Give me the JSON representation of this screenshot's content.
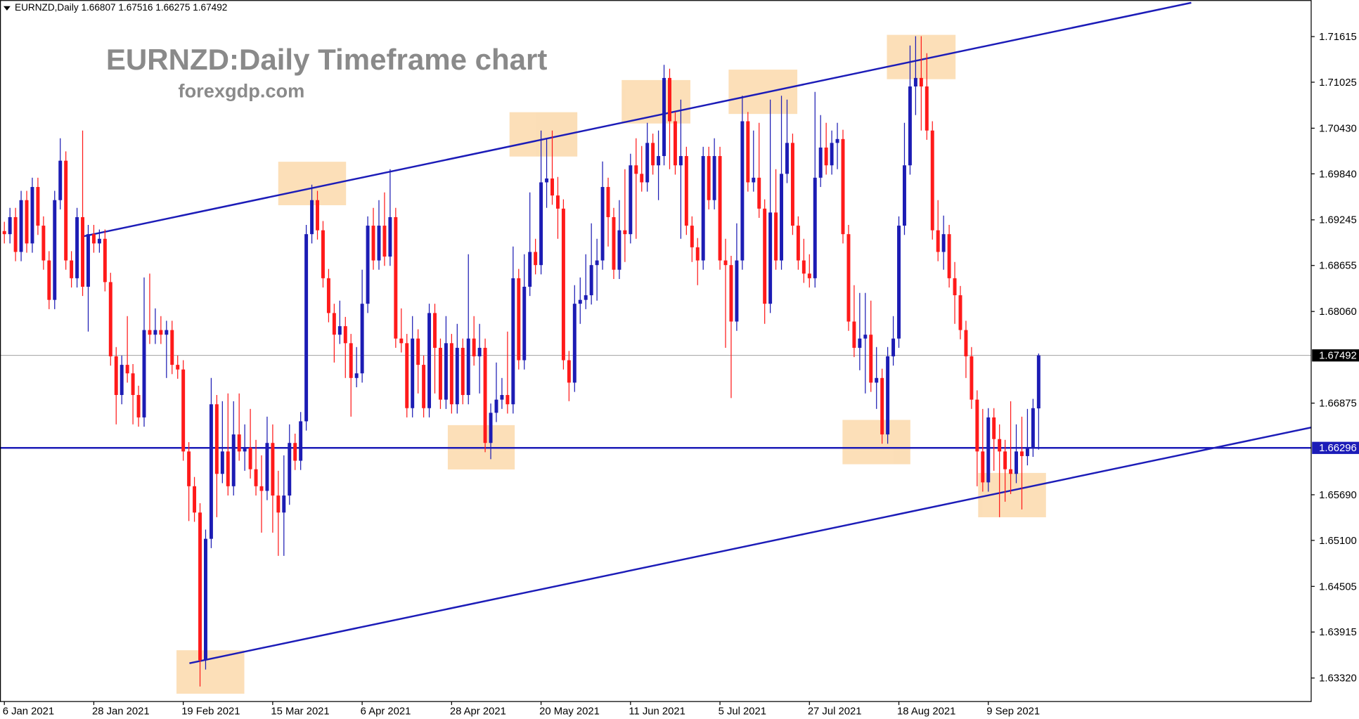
{
  "chart_data": {
    "type": "candlestick",
    "symbol": "EURNZD,Daily",
    "last_bar": [
      1.66807,
      1.67516,
      1.66275,
      1.67492
    ],
    "title": "EURNZD:Daily Timeframe chart",
    "subtitle": "forexgdp.com",
    "up_color": "#1c1cb4",
    "down_color": "#ff1a1a",
    "xlim": [
      -0.78,
      233.75
    ],
    "ylim": [
      1.63016,
      1.72087
    ],
    "xticks": [
      {
        "value": 0,
        "label": "6 Jan 2021"
      },
      {
        "value": 16,
        "label": "28 Jan 2021"
      },
      {
        "value": 32,
        "label": "19 Feb 2021"
      },
      {
        "value": 48,
        "label": "15 Mar 2021"
      },
      {
        "value": 64,
        "label": "6 Apr 2021"
      },
      {
        "value": 80,
        "label": "28 Apr 2021"
      },
      {
        "value": 96,
        "label": "20 May 2021"
      },
      {
        "value": 112,
        "label": "11 Jun 2021"
      },
      {
        "value": 128,
        "label": "5 Jul 2021"
      },
      {
        "value": 144,
        "label": "27 Jul 2021"
      },
      {
        "value": 160,
        "label": "18 Aug 2021"
      },
      {
        "value": 176,
        "label": "9 Sep 2021"
      }
    ],
    "yticks": [
      1.71615,
      1.71025,
      {
        "value": 1.7043,
        "label": "1.70430"
      },
      {
        "value": 1.6984,
        "label": "1.69840"
      },
      1.69245,
      1.68655,
      {
        "value": 1.6806,
        "label": "1.68060"
      },
      1.66875,
      {
        "value": 1.6569,
        "label": "1.65690"
      },
      {
        "value": 1.651,
        "label": "1.65100"
      },
      1.64505,
      1.63915,
      {
        "value": 1.6332,
        "label": "1.63320"
      }
    ],
    "levels": [
      {
        "value": 1.67492,
        "color": "#a0a0a0",
        "label_bg": "#000000"
      },
      {
        "value": 1.66296,
        "color": "#1c1cb8",
        "label_bg": "#1c1cb8"
      }
    ],
    "trendline_color": "#1c1cb8",
    "trendlines": [
      [
        [
          14,
          1.6903
        ],
        [
          212.3,
          1.72053
        ]
      ],
      [
        [
          33.1,
          1.63511
        ],
        [
          233.75,
          1.6656
        ]
      ]
    ],
    "candles": [
      [
        1.691,
        1.6922,
        1.6894,
        1.6906
      ],
      [
        1.6906,
        1.694,
        1.6894,
        1.6928
      ],
      [
        1.6928,
        1.694,
        1.6871,
        1.6883
      ],
      [
        1.6883,
        1.6962,
        1.6871,
        1.695
      ],
      [
        1.695,
        1.6962,
        1.6882,
        1.6894
      ],
      [
        1.6894,
        1.6979,
        1.6882,
        1.6967
      ],
      [
        1.6967,
        1.6979,
        1.6905,
        1.6917
      ],
      [
        1.6917,
        1.6929,
        1.686,
        1.6872
      ],
      [
        1.6872,
        1.6884,
        1.6809,
        1.6821
      ],
      [
        1.6821,
        1.6962,
        1.6809,
        1.695
      ],
      [
        1.695,
        1.703,
        1.6938,
        1.7001
      ],
      [
        1.7001,
        1.7013,
        1.686,
        1.6872
      ],
      [
        1.6872,
        1.6884,
        1.6837,
        1.6849
      ],
      [
        1.6849,
        1.694,
        1.6837,
        1.6928
      ],
      [
        1.6928,
        1.704,
        1.6826,
        1.6838
      ],
      [
        1.6838,
        1.6918,
        1.678,
        1.6906
      ],
      [
        1.6906,
        1.6918,
        1.6882,
        1.6894
      ],
      [
        1.6894,
        1.6912,
        1.6882,
        1.69
      ],
      [
        1.69,
        1.6912,
        1.6832,
        1.6844
      ],
      [
        1.6844,
        1.6856,
        1.6736,
        1.6748
      ],
      [
        1.6748,
        1.676,
        1.666,
        1.6698
      ],
      [
        1.6698,
        1.6749,
        1.6686,
        1.6737
      ],
      [
        1.6737,
        1.68,
        1.6714,
        1.6726
      ],
      [
        1.6726,
        1.6738,
        1.666,
        1.6698
      ],
      [
        1.6698,
        1.671,
        1.6657,
        1.6669
      ],
      [
        1.6669,
        1.685,
        1.6657,
        1.6782
      ],
      [
        1.6782,
        1.6855,
        1.6764,
        1.6776
      ],
      [
        1.6776,
        1.681,
        1.6764,
        1.6782
      ],
      [
        1.6782,
        1.68,
        1.6764,
        1.6776
      ],
      [
        1.6776,
        1.6794,
        1.672,
        1.6782
      ],
      [
        1.6782,
        1.6794,
        1.6725,
        1.6737
      ],
      [
        1.6737,
        1.6749,
        1.6719,
        1.6731
      ],
      [
        1.6731,
        1.6743,
        1.6613,
        1.6625
      ],
      [
        1.6625,
        1.6637,
        1.6535,
        1.658
      ],
      [
        1.658,
        1.6592,
        1.6534,
        1.6546
      ],
      [
        1.6546,
        1.6558,
        1.6321,
        1.6355
      ],
      [
        1.6355,
        1.6524,
        1.6343,
        1.6512
      ],
      [
        1.6512,
        1.672,
        1.65,
        1.6686
      ],
      [
        1.6686,
        1.6698,
        1.654,
        1.6596
      ],
      [
        1.6596,
        1.669,
        1.6584,
        1.6625
      ],
      [
        1.6625,
        1.67,
        1.6568,
        1.658
      ],
      [
        1.658,
        1.669,
        1.6568,
        1.6647
      ],
      [
        1.6647,
        1.67,
        1.6613,
        1.6625
      ],
      [
        1.6625,
        1.666,
        1.66,
        1.663
      ],
      [
        1.663,
        1.668,
        1.659,
        1.6602
      ],
      [
        1.6602,
        1.664,
        1.6568,
        1.658
      ],
      [
        1.658,
        1.662,
        1.652,
        1.6574
      ],
      [
        1.6574,
        1.667,
        1.6562,
        1.6636
      ],
      [
        1.6636,
        1.666,
        1.652,
        1.6568
      ],
      [
        1.6568,
        1.66,
        1.649,
        1.6546
      ],
      [
        1.6546,
        1.662,
        1.649,
        1.6568
      ],
      [
        1.6568,
        1.666,
        1.6556,
        1.6636
      ],
      [
        1.6636,
        1.6648,
        1.6601,
        1.6613
      ],
      [
        1.6613,
        1.6676,
        1.6601,
        1.6664
      ],
      [
        1.6664,
        1.6918,
        1.6652,
        1.6906
      ],
      [
        1.6906,
        1.697,
        1.6894,
        1.695
      ],
      [
        1.695,
        1.6962,
        1.6899,
        1.6911
      ],
      [
        1.6911,
        1.6923,
        1.6837,
        1.6849
      ],
      [
        1.6849,
        1.6861,
        1.6792,
        1.6804
      ],
      [
        1.6804,
        1.6816,
        1.674,
        1.6776
      ],
      [
        1.6776,
        1.682,
        1.6764,
        1.6787
      ],
      [
        1.6787,
        1.6799,
        1.672,
        1.6765
      ],
      [
        1.6765,
        1.6777,
        1.667,
        1.672
      ],
      [
        1.672,
        1.676,
        1.6708,
        1.6726
      ],
      [
        1.6726,
        1.686,
        1.6714,
        1.6816
      ],
      [
        1.6816,
        1.6929,
        1.6804,
        1.6917
      ],
      [
        1.6917,
        1.694,
        1.686,
        1.6872
      ],
      [
        1.6872,
        1.695,
        1.686,
        1.6917
      ],
      [
        1.6917,
        1.696,
        1.6865,
        1.6877
      ],
      [
        1.6877,
        1.699,
        1.6865,
        1.6928
      ],
      [
        1.6928,
        1.694,
        1.6759,
        1.6771
      ],
      [
        1.6771,
        1.681,
        1.6753,
        1.6765
      ],
      [
        1.6765,
        1.6777,
        1.6669,
        1.6681
      ],
      [
        1.6681,
        1.68,
        1.6669,
        1.6771
      ],
      [
        1.6771,
        1.6783,
        1.67,
        1.6737
      ],
      [
        1.6737,
        1.6749,
        1.6669,
        1.6681
      ],
      [
        1.6681,
        1.6816,
        1.6669,
        1.6804
      ],
      [
        1.6804,
        1.6816,
        1.67,
        1.6759
      ],
      [
        1.6759,
        1.6771,
        1.668,
        1.6692
      ],
      [
        1.6692,
        1.68,
        1.668,
        1.6765
      ],
      [
        1.6765,
        1.6777,
        1.6674,
        1.6686
      ],
      [
        1.6686,
        1.679,
        1.6674,
        1.6759
      ],
      [
        1.6759,
        1.6771,
        1.6686,
        1.6698
      ],
      [
        1.6698,
        1.688,
        1.6686,
        1.6771
      ],
      [
        1.6771,
        1.68,
        1.6736,
        1.6748
      ],
      [
        1.6748,
        1.679,
        1.67,
        1.6759
      ],
      [
        1.6759,
        1.6771,
        1.6624,
        1.6636
      ],
      [
        1.6636,
        1.6687,
        1.6615,
        1.6675
      ],
      [
        1.6675,
        1.674,
        1.6663,
        1.6692
      ],
      [
        1.6692,
        1.672,
        1.668,
        1.6698
      ],
      [
        1.6698,
        1.678,
        1.6674,
        1.6686
      ],
      [
        1.6686,
        1.689,
        1.6674,
        1.6849
      ],
      [
        1.6849,
        1.6861,
        1.6731,
        1.6743
      ],
      [
        1.6743,
        1.688,
        1.6731,
        1.6838
      ],
      [
        1.6838,
        1.696,
        1.6826,
        1.6883
      ],
      [
        1.6883,
        1.69,
        1.6854,
        1.6866
      ],
      [
        1.6866,
        1.704,
        1.6854,
        1.6973
      ],
      [
        1.6973,
        1.703,
        1.694,
        1.6978
      ],
      [
        1.6978,
        1.704,
        1.6944,
        1.6956
      ],
      [
        1.6956,
        1.698,
        1.69,
        1.6939
      ],
      [
        1.6939,
        1.6951,
        1.6731,
        1.6743
      ],
      [
        1.6743,
        1.6755,
        1.669,
        1.6714
      ],
      [
        1.6714,
        1.684,
        1.6702,
        1.6816
      ],
      [
        1.6816,
        1.685,
        1.679,
        1.6821
      ],
      [
        1.6821,
        1.688,
        1.6809,
        1.6827
      ],
      [
        1.6827,
        1.692,
        1.6815,
        1.6866
      ],
      [
        1.6866,
        1.69,
        1.682,
        1.6872
      ],
      [
        1.6872,
        1.7,
        1.686,
        1.6967
      ],
      [
        1.6967,
        1.6979,
        1.689,
        1.6928
      ],
      [
        1.6928,
        1.694,
        1.6848,
        1.686
      ],
      [
        1.686,
        1.695,
        1.6848,
        1.6911
      ],
      [
        1.6911,
        1.699,
        1.687,
        1.6906
      ],
      [
        1.6906,
        1.701,
        1.6894,
        1.6995
      ],
      [
        1.6995,
        1.703,
        1.69,
        1.6984
      ],
      [
        1.6984,
        1.702,
        1.6961,
        1.6973
      ],
      [
        1.6973,
        1.705,
        1.6961,
        1.7024
      ],
      [
        1.7024,
        1.7036,
        1.6983,
        1.6995
      ],
      [
        1.6995,
        1.704,
        1.695,
        1.7007
      ],
      [
        1.7007,
        1.7125,
        1.6995,
        1.7108
      ],
      [
        1.7108,
        1.712,
        1.699,
        1.7052
      ],
      [
        1.7052,
        1.7064,
        1.6983,
        1.6995
      ],
      [
        1.6995,
        1.708,
        1.69,
        1.7007
      ],
      [
        1.7007,
        1.7019,
        1.6905,
        1.6917
      ],
      [
        1.6917,
        1.6929,
        1.687,
        1.6889
      ],
      [
        1.6889,
        1.6901,
        1.684,
        1.6872
      ],
      [
        1.6872,
        1.7019,
        1.686,
        1.7007
      ],
      [
        1.7007,
        1.7019,
        1.6938,
        1.695
      ],
      [
        1.695,
        1.703,
        1.6938,
        1.7007
      ],
      [
        1.7007,
        1.7019,
        1.686,
        1.6872
      ],
      [
        1.6872,
        1.69,
        1.6759,
        1.6866
      ],
      [
        1.6866,
        1.6878,
        1.6694,
        1.6793
      ],
      [
        1.6793,
        1.692,
        1.6781,
        1.6872
      ],
      [
        1.6872,
        1.7085,
        1.686,
        1.7052
      ],
      [
        1.7052,
        1.7064,
        1.6961,
        1.6973
      ],
      [
        1.6973,
        1.704,
        1.6961,
        1.6979
      ],
      [
        1.6979,
        1.705,
        1.6927,
        1.6939
      ],
      [
        1.6939,
        1.6951,
        1.679,
        1.6816
      ],
      [
        1.6816,
        1.708,
        1.6804,
        1.6934
      ],
      [
        1.6934,
        1.699,
        1.686,
        1.6872
      ],
      [
        1.6872,
        1.7085,
        1.686,
        1.6984
      ],
      [
        1.6984,
        1.708,
        1.6972,
        1.7024
      ],
      [
        1.7024,
        1.7036,
        1.6905,
        1.6917
      ],
      [
        1.6917,
        1.6929,
        1.686,
        1.6872
      ],
      [
        1.6872,
        1.69,
        1.6843,
        1.6855
      ],
      [
        1.6855,
        1.688,
        1.6837,
        1.6849
      ],
      [
        1.6849,
        1.709,
        1.6837,
        1.6979
      ],
      [
        1.6979,
        1.706,
        1.6967,
        1.7018
      ],
      [
        1.7018,
        1.705,
        1.6983,
        1.6995
      ],
      [
        1.6995,
        1.704,
        1.6983,
        1.7024
      ],
      [
        1.7024,
        1.705,
        1.699,
        1.7029
      ],
      [
        1.7029,
        1.7041,
        1.6894,
        1.6906
      ],
      [
        1.6906,
        1.6918,
        1.6781,
        1.6793
      ],
      [
        1.6793,
        1.684,
        1.6747,
        1.6759
      ],
      [
        1.6759,
        1.683,
        1.673,
        1.6771
      ],
      [
        1.6771,
        1.683,
        1.67,
        1.6776
      ],
      [
        1.6776,
        1.682,
        1.6702,
        1.6714
      ],
      [
        1.6714,
        1.676,
        1.668,
        1.672
      ],
      [
        1.672,
        1.6732,
        1.6635,
        1.6647
      ],
      [
        1.6647,
        1.676,
        1.6635,
        1.6748
      ],
      [
        1.6748,
        1.68,
        1.6736,
        1.6771
      ],
      [
        1.6771,
        1.6929,
        1.6759,
        1.6917
      ],
      [
        1.6917,
        1.705,
        1.6905,
        1.6995
      ],
      [
        1.6995,
        1.715,
        1.6983,
        1.7097
      ],
      [
        1.7097,
        1.7162,
        1.706,
        1.7108
      ],
      [
        1.7108,
        1.7162,
        1.704,
        1.7097
      ],
      [
        1.7097,
        1.714,
        1.7028,
        1.704
      ],
      [
        1.704,
        1.7052,
        1.6899,
        1.6911
      ],
      [
        1.6911,
        1.695,
        1.6871,
        1.6883
      ],
      [
        1.6883,
        1.693,
        1.686,
        1.6906
      ],
      [
        1.6906,
        1.6918,
        1.6837,
        1.6849
      ],
      [
        1.6849,
        1.687,
        1.679,
        1.6827
      ],
      [
        1.6827,
        1.6839,
        1.677,
        1.6782
      ],
      [
        1.6782,
        1.6794,
        1.672,
        1.6748
      ],
      [
        1.6748,
        1.676,
        1.668,
        1.6692
      ],
      [
        1.6692,
        1.6704,
        1.658,
        1.6625
      ],
      [
        1.6625,
        1.668,
        1.6573,
        1.6585
      ],
      [
        1.6585,
        1.6681,
        1.6573,
        1.6669
      ],
      [
        1.6669,
        1.6681,
        1.66,
        1.6641
      ],
      [
        1.6641,
        1.666,
        1.654,
        1.6625
      ],
      [
        1.6625,
        1.664,
        1.656,
        1.6602
      ],
      [
        1.6602,
        1.669,
        1.657,
        1.6596
      ],
      [
        1.6596,
        1.666,
        1.6584,
        1.6625
      ],
      [
        1.6625,
        1.667,
        1.655,
        1.6619
      ],
      [
        1.6619,
        1.668,
        1.6607,
        1.663
      ],
      [
        1.663,
        1.6693,
        1.6618,
        1.6681
      ],
      [
        1.66807,
        1.67516,
        1.66275,
        1.67492
      ]
    ]
  }
}
